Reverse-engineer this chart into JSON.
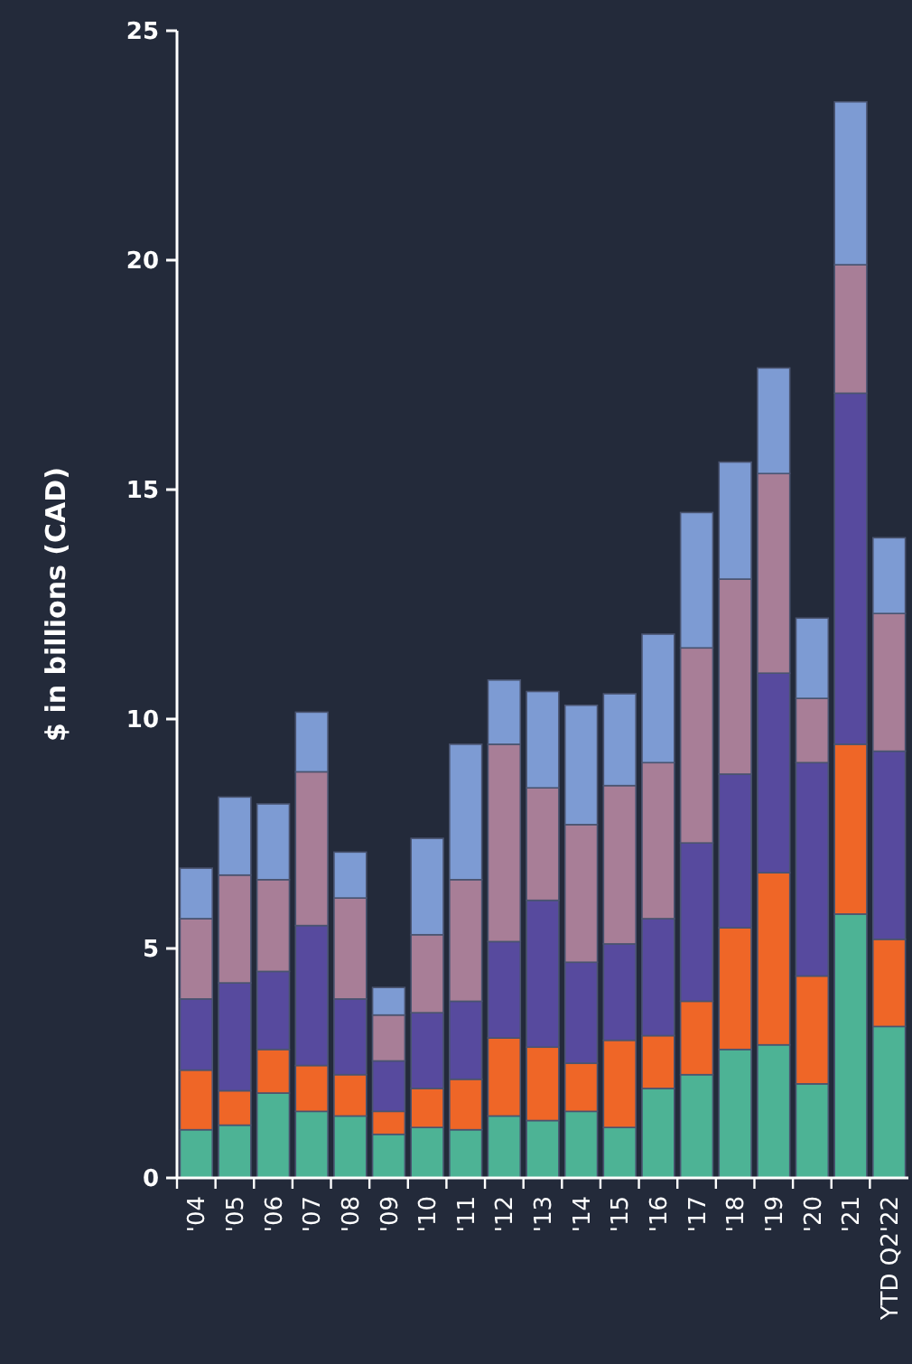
{
  "chart_data": {
    "type": "bar",
    "stacked": true,
    "ylabel": "$ in billions (CAD)",
    "categories": [
      "'04",
      "'05",
      "'06",
      "'07",
      "'08",
      "'09",
      "'10",
      "'11",
      "'12",
      "'13",
      "'14",
      "'15",
      "'16",
      "'17",
      "'18",
      "'19",
      "'20",
      "'21",
      "YTD Q2'22"
    ],
    "series": [
      {
        "color": "#4db395",
        "values": [
          1.05,
          1.15,
          1.85,
          1.45,
          1.35,
          0.95,
          1.1,
          1.05,
          1.35,
          1.25,
          1.45,
          1.1,
          1.95,
          2.25,
          2.8,
          2.9,
          2.05,
          5.75,
          3.3
        ]
      },
      {
        "color": "#ef6627",
        "values": [
          1.3,
          0.75,
          0.95,
          1.0,
          0.9,
          0.5,
          0.85,
          1.1,
          1.7,
          1.6,
          1.05,
          1.9,
          1.15,
          1.6,
          2.65,
          3.75,
          2.35,
          3.7,
          1.9
        ]
      },
      {
        "color": "#574a9e",
        "values": [
          1.55,
          2.35,
          1.7,
          3.05,
          1.65,
          1.1,
          1.65,
          1.7,
          2.1,
          3.2,
          2.2,
          2.1,
          2.55,
          3.45,
          3.35,
          4.35,
          4.65,
          7.65,
          4.1
        ]
      },
      {
        "color": "#a87e97",
        "values": [
          1.75,
          2.35,
          2.0,
          3.35,
          2.2,
          1.0,
          1.7,
          2.65,
          4.3,
          2.45,
          3.0,
          3.45,
          3.4,
          4.25,
          4.25,
          4.35,
          1.4,
          2.8,
          3.0
        ]
      },
      {
        "color": "#7d9bd3",
        "values": [
          1.1,
          1.7,
          1.65,
          1.3,
          1.0,
          0.6,
          2.1,
          2.95,
          1.4,
          2.1,
          2.6,
          2.0,
          2.8,
          2.95,
          2.55,
          2.3,
          1.75,
          3.55,
          1.65
        ]
      }
    ],
    "ylim": [
      0,
      25
    ],
    "yticks": [
      0,
      5,
      10,
      15,
      20,
      25
    ],
    "grid": false
  }
}
